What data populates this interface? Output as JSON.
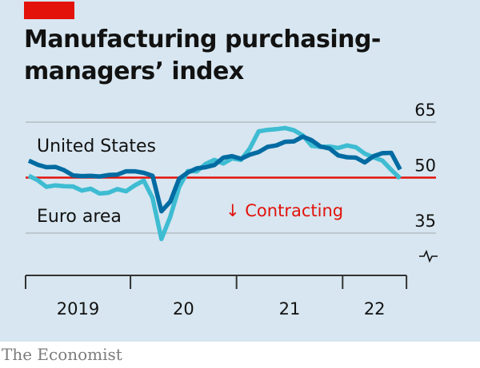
{
  "title": "Manufacturing purchasing-managers’ index",
  "source": "The Economist",
  "colors": {
    "background": "#d7e6f0",
    "accent_tag": "#e3120b",
    "united_states": "#006ba2",
    "euro_area": "#3ebcd2",
    "threshold": "#e3120b",
    "annotation": "#e3120b"
  },
  "chart_data": {
    "type": "line",
    "title": "Manufacturing purchasing-managers’ index",
    "xlabel": "",
    "ylabel": "",
    "ylim": [
      35,
      65
    ],
    "yticks": [
      65,
      50,
      35
    ],
    "ytick_labels": [
      "65",
      "50",
      "35"
    ],
    "y_axis_position": "right",
    "y_axis_break": true,
    "grid": true,
    "xticks": [
      "2019",
      "20",
      "21",
      "22"
    ],
    "x_start": "2019-01",
    "x_end": "2022-07",
    "threshold": {
      "value": 50,
      "label": "↓ Contracting"
    },
    "x": [
      "2019-01",
      "2019-02",
      "2019-03",
      "2019-04",
      "2019-05",
      "2019-06",
      "2019-07",
      "2019-08",
      "2019-09",
      "2019-10",
      "2019-11",
      "2019-12",
      "2020-01",
      "2020-02",
      "2020-03",
      "2020-04",
      "2020-05",
      "2020-06",
      "2020-07",
      "2020-08",
      "2020-09",
      "2020-10",
      "2020-11",
      "2020-12",
      "2021-01",
      "2021-02",
      "2021-03",
      "2021-04",
      "2021-05",
      "2021-06",
      "2021-07",
      "2021-08",
      "2021-09",
      "2021-10",
      "2021-11",
      "2021-12",
      "2022-01",
      "2022-02",
      "2022-03",
      "2022-04",
      "2022-05",
      "2022-06",
      "2022-07"
    ],
    "series": [
      {
        "name": "United States",
        "label_position": "above",
        "values": [
          54.6,
          53.5,
          52.8,
          52.9,
          52.0,
          50.6,
          50.4,
          50.5,
          50.3,
          50.7,
          50.8,
          51.7,
          51.7,
          51.3,
          50.5,
          40.9,
          43.5,
          49.7,
          51.4,
          52.5,
          52.8,
          53.4,
          55.4,
          55.8,
          55.1,
          56.2,
          56.9,
          58.3,
          58.7,
          59.7,
          59.8,
          61.1,
          60.1,
          58.4,
          57.9,
          56.0,
          55.5,
          55.4,
          54.1,
          55.8,
          56.6,
          56.7,
          52.2
        ]
      },
      {
        "name": "Euro area",
        "label_position": "below",
        "values": [
          50.5,
          49.3,
          47.5,
          47.9,
          47.7,
          47.6,
          46.5,
          47.0,
          45.7,
          45.9,
          46.9,
          46.3,
          47.9,
          49.2,
          44.5,
          33.4,
          39.4,
          47.4,
          51.8,
          51.7,
          53.7,
          54.8,
          53.8,
          55.2,
          54.8,
          57.9,
          62.5,
          62.9,
          63.1,
          63.4,
          62.8,
          61.4,
          58.6,
          58.3,
          58.4,
          58.0,
          58.7,
          58.2,
          56.5,
          55.5,
          54.6,
          52.1,
          49.8
        ]
      }
    ]
  }
}
